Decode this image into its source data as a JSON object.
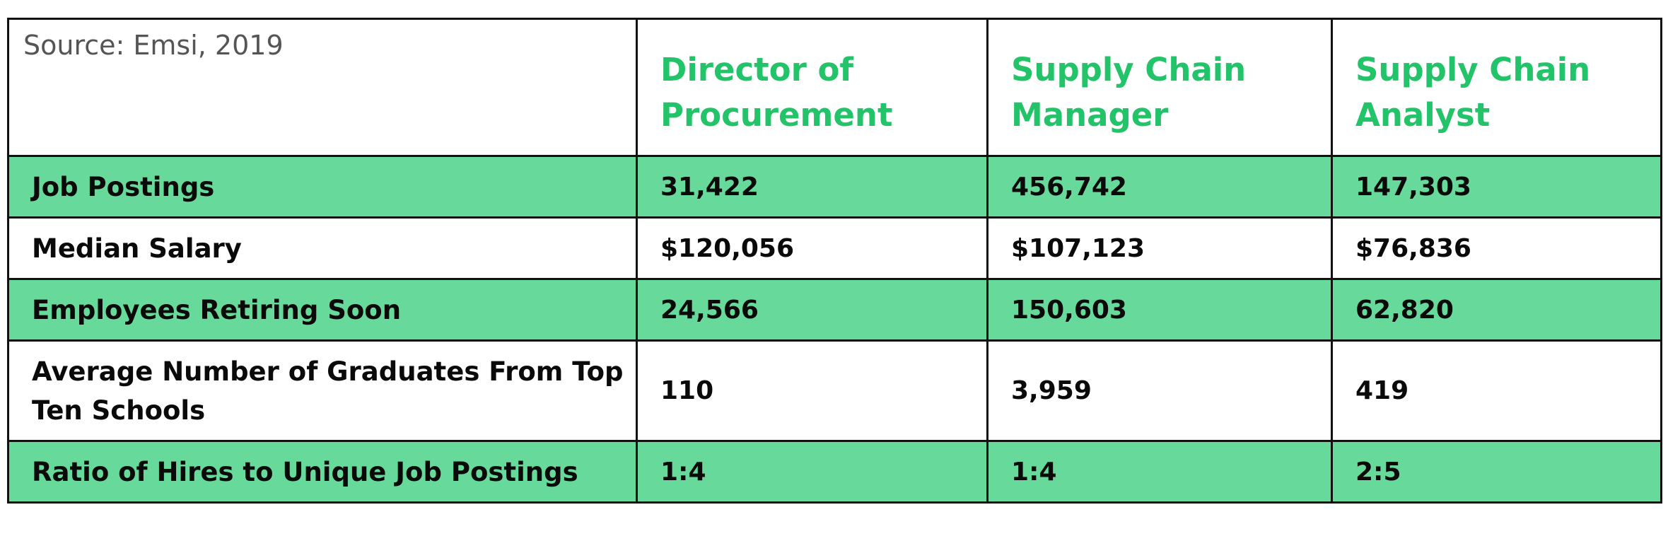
{
  "table": {
    "source_note": "Source: Emsi, 2019",
    "columns": [
      "Director of Procurement",
      "Supply Chain Manager",
      "Supply Chain Analyst"
    ],
    "rows": [
      {
        "label": "Job Postings",
        "values": [
          "31,422",
          "456,742",
          "147,303"
        ],
        "shade": "green"
      },
      {
        "label": "Median Salary",
        "values": [
          "$120,056",
          "$107,123",
          "$76,836"
        ],
        "shade": "white"
      },
      {
        "label": "Employees Retiring Soon",
        "values": [
          "24,566",
          "150,603",
          "62,820"
        ],
        "shade": "green"
      },
      {
        "label": "Average Number of Graduates From Top Ten Schools",
        "values": [
          "110",
          "3,959",
          "419"
        ],
        "shade": "white"
      },
      {
        "label": "Ratio of Hires to Unique Job Postings",
        "values": [
          "1:4",
          "1:4",
          "2:5"
        ],
        "shade": "green"
      }
    ]
  },
  "colors": {
    "accent_green_text": "#23c469",
    "row_green_fill": "#67d99a",
    "border": "#111111",
    "body_text": "#0a0a0a",
    "source_text": "#555555"
  }
}
